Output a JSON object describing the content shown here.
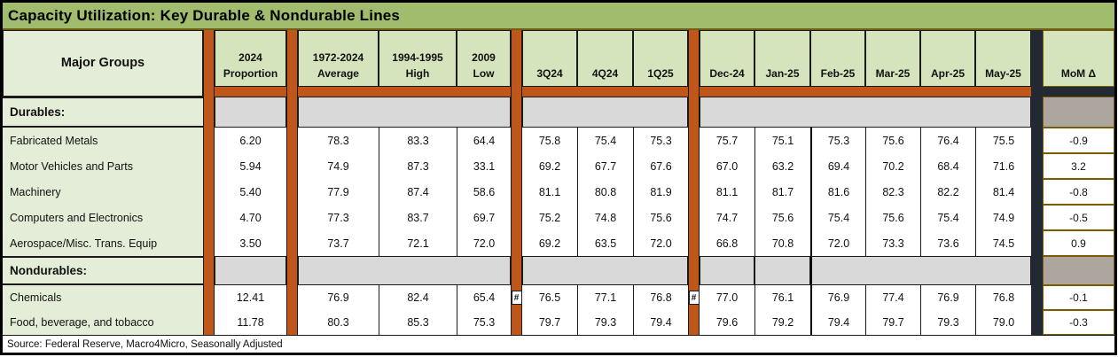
{
  "title": "Capacity Utilization: Key Durable & Nondurable Lines",
  "header": {
    "label": "Major Groups",
    "proportion": "2024\nProportion",
    "historical": [
      "1972-2024\nAverage",
      "1994-1995\nHigh",
      "2009\nLow"
    ],
    "quarters": [
      "3Q24",
      "4Q24",
      "1Q25"
    ],
    "months": [
      "Dec-24",
      "Jan-25",
      "Feb-25",
      "Mar-25",
      "Apr-25",
      "May-25"
    ],
    "mom": "MoM Δ"
  },
  "hash_marker": "#",
  "sections": [
    {
      "band_label": "Durables:",
      "rows": [
        {
          "label": "Fabricated Metals",
          "proportion": "6.20",
          "historical": [
            "78.3",
            "83.3",
            "64.4"
          ],
          "quarters": [
            "75.8",
            "75.4",
            "75.3"
          ],
          "months": [
            "75.7",
            "75.1",
            "75.3",
            "75.6",
            "76.4",
            "75.5"
          ],
          "mom": "-0.9",
          "hash": false
        },
        {
          "label": "Motor Vehicles and Parts",
          "proportion": "5.94",
          "historical": [
            "74.9",
            "87.3",
            "33.1"
          ],
          "quarters": [
            "69.2",
            "67.7",
            "67.6"
          ],
          "months": [
            "67.0",
            "63.2",
            "69.4",
            "70.2",
            "68.4",
            "71.6"
          ],
          "mom": "3.2",
          "hash": false
        },
        {
          "label": "Machinery",
          "proportion": "5.40",
          "historical": [
            "77.9",
            "87.4",
            "58.6"
          ],
          "quarters": [
            "81.1",
            "80.8",
            "81.9"
          ],
          "months": [
            "81.1",
            "81.7",
            "81.6",
            "82.3",
            "82.2",
            "81.4"
          ],
          "mom": "-0.8",
          "hash": false
        },
        {
          "label": "Computers and Electronics",
          "proportion": "4.70",
          "historical": [
            "77.3",
            "83.7",
            "69.7"
          ],
          "quarters": [
            "75.2",
            "74.8",
            "75.6"
          ],
          "months": [
            "74.7",
            "75.6",
            "75.4",
            "75.6",
            "75.4",
            "74.9"
          ],
          "mom": "-0.5",
          "hash": false
        },
        {
          "label": "Aerospace/Misc. Trans. Equip",
          "proportion": "3.50",
          "historical": [
            "73.7",
            "72.1",
            "72.0"
          ],
          "quarters": [
            "69.2",
            "63.5",
            "72.0"
          ],
          "months": [
            "66.8",
            "70.8",
            "72.0",
            "73.3",
            "73.6",
            "74.5"
          ],
          "mom": "0.9",
          "hash": false
        }
      ]
    },
    {
      "band_label": "Nondurables:",
      "rows": [
        {
          "label": "Chemicals",
          "proportion": "12.41",
          "historical": [
            "76.9",
            "82.4",
            "65.4"
          ],
          "quarters": [
            "76.5",
            "77.1",
            "76.8"
          ],
          "months": [
            "77.0",
            "76.1",
            "76.9",
            "77.4",
            "76.9",
            "76.8"
          ],
          "mom": "-0.1",
          "hash": true
        },
        {
          "label": "Food, beverage, and tobacco",
          "proportion": "11.78",
          "historical": [
            "80.3",
            "85.3",
            "75.3"
          ],
          "quarters": [
            "79.7",
            "79.3",
            "79.4"
          ],
          "months": [
            "79.6",
            "79.2",
            "79.4",
            "79.7",
            "79.3",
            "79.0"
          ],
          "mom": "-0.3",
          "hash": false
        }
      ]
    }
  ],
  "footer": {
    "source": "Source: Federal Reserve, Macro4Micro, Seasonally Adjusted"
  },
  "colors": {
    "title_bg": "#A0BC6C",
    "header_bg": "#D6E4BE",
    "label_bg": "#E4EDD8",
    "band_gray": "#D9D9D9",
    "mom_band": "#ACA69E",
    "orange": "#C0571A",
    "dark": "#232933",
    "momborder": "#7A5C00"
  },
  "chart_data": {
    "type": "table",
    "title": "Capacity Utilization: Key Durable & Nondurable Lines",
    "columns": [
      "Major Groups",
      "2024 Proportion",
      "1972-2024 Average",
      "1994-1995 High",
      "2009 Low",
      "3Q24",
      "4Q24",
      "1Q25",
      "Dec-24",
      "Jan-25",
      "Feb-25",
      "Mar-25",
      "Apr-25",
      "May-25",
      "MoM Δ"
    ],
    "rows": [
      [
        "Durables:",
        "",
        "",
        "",
        "",
        "",
        "",
        "",
        "",
        "",
        "",
        "",
        "",
        "",
        ""
      ],
      [
        "Fabricated Metals",
        "6.20",
        "78.3",
        "83.3",
        "64.4",
        "75.8",
        "75.4",
        "75.3",
        "75.7",
        "75.1",
        "75.3",
        "75.6",
        "76.4",
        "75.5",
        "-0.9"
      ],
      [
        "Motor Vehicles and Parts",
        "5.94",
        "74.9",
        "87.3",
        "33.1",
        "69.2",
        "67.7",
        "67.6",
        "67.0",
        "63.2",
        "69.4",
        "70.2",
        "68.4",
        "71.6",
        "3.2"
      ],
      [
        "Machinery",
        "5.40",
        "77.9",
        "87.4",
        "58.6",
        "81.1",
        "80.8",
        "81.9",
        "81.1",
        "81.7",
        "81.6",
        "82.3",
        "82.2",
        "81.4",
        "-0.8"
      ],
      [
        "Computers and Electronics",
        "4.70",
        "77.3",
        "83.7",
        "69.7",
        "75.2",
        "74.8",
        "75.6",
        "74.7",
        "75.6",
        "75.4",
        "75.6",
        "75.4",
        "74.9",
        "-0.5"
      ],
      [
        "Aerospace/Misc. Trans. Equip",
        "3.50",
        "73.7",
        "72.1",
        "72.0",
        "69.2",
        "63.5",
        "72.0",
        "66.8",
        "70.8",
        "72.0",
        "73.3",
        "73.6",
        "74.5",
        "0.9"
      ],
      [
        "Nondurables:",
        "",
        "",
        "",
        "",
        "",
        "",
        "",
        "",
        "",
        "",
        "",
        "",
        "",
        ""
      ],
      [
        "Chemicals",
        "12.41",
        "76.9",
        "82.4",
        "65.4",
        "76.5",
        "77.1",
        "76.8",
        "77.0",
        "76.1",
        "76.9",
        "77.4",
        "76.9",
        "76.8",
        "-0.1"
      ],
      [
        "Food, beverage, and tobacco",
        "11.78",
        "80.3",
        "85.3",
        "75.3",
        "79.7",
        "79.3",
        "79.4",
        "79.6",
        "79.2",
        "79.4",
        "79.7",
        "79.3",
        "79.0",
        "-0.3"
      ]
    ],
    "footnote": "Source: Federal Reserve, Macro4Micro, Seasonally Adjusted"
  }
}
